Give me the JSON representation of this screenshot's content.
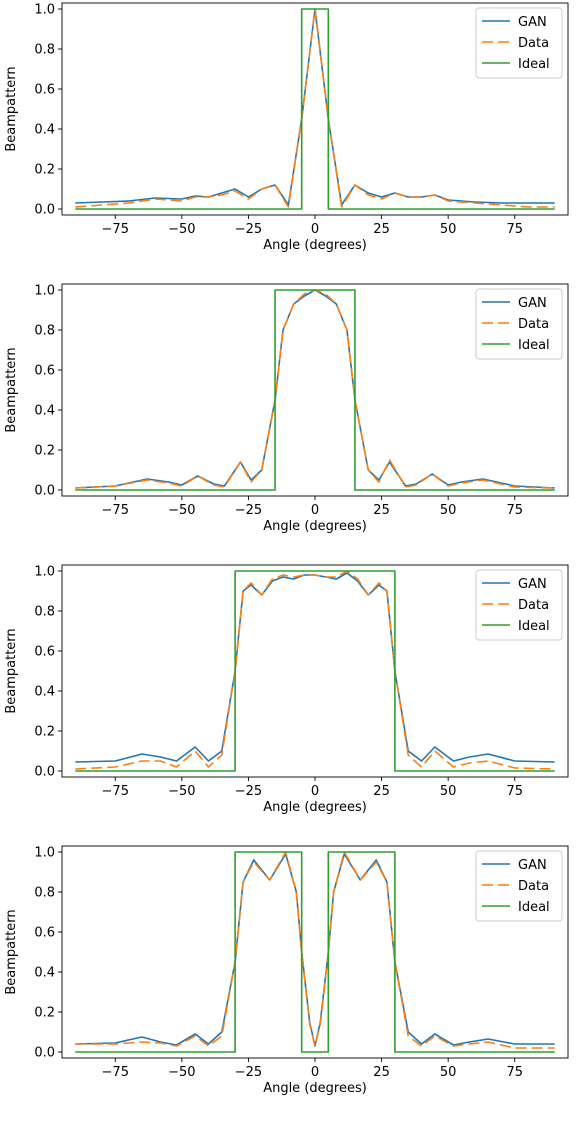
{
  "chart_data": [
    {
      "type": "line",
      "xlabel": "Angle (degrees)",
      "ylabel": "Beampattern",
      "xlim": [
        -95,
        95
      ],
      "ylim": [
        -0.03,
        1.03
      ],
      "xticks": [
        -75,
        -50,
        -25,
        0,
        25,
        50,
        75
      ],
      "xtick_labels": [
        "−75",
        "−50",
        "−25",
        "0",
        "25",
        "50",
        "75"
      ],
      "yticks": [
        0.0,
        0.2,
        0.4,
        0.6,
        0.8,
        1.0
      ],
      "ytick_labels": [
        "0.0",
        "0.2",
        "0.4",
        "0.6",
        "0.8",
        "1.0"
      ],
      "legend_position": "top-right",
      "series": [
        {
          "name": "GAN",
          "color": "#1f77b4",
          "x": [
            -90,
            -80,
            -70,
            -60,
            -50,
            -45,
            -40,
            -35,
            -30,
            -25,
            -20,
            -15,
            -10,
            -5,
            0,
            5,
            10,
            15,
            20,
            25,
            30,
            35,
            40,
            45,
            50,
            60,
            70,
            80,
            90
          ],
          "y": [
            0.03,
            0.035,
            0.04,
            0.055,
            0.05,
            0.065,
            0.06,
            0.08,
            0.1,
            0.06,
            0.1,
            0.12,
            0.02,
            0.45,
            1.0,
            0.45,
            0.02,
            0.12,
            0.08,
            0.06,
            0.08,
            0.06,
            0.06,
            0.07,
            0.045,
            0.035,
            0.03,
            0.03,
            0.03
          ]
        },
        {
          "name": "Data",
          "color": "#ff7f0e",
          "x": [
            -90,
            -80,
            -70,
            -60,
            -50,
            -45,
            -40,
            -35,
            -30,
            -25,
            -20,
            -15,
            -10,
            -5,
            0,
            5,
            10,
            15,
            20,
            25,
            30,
            35,
            40,
            45,
            50,
            60,
            70,
            80,
            90
          ],
          "y": [
            0.01,
            0.02,
            0.03,
            0.05,
            0.04,
            0.06,
            0.06,
            0.07,
            0.09,
            0.05,
            0.1,
            0.12,
            0.01,
            0.45,
            1.0,
            0.45,
            0.01,
            0.12,
            0.07,
            0.05,
            0.08,
            0.06,
            0.06,
            0.07,
            0.04,
            0.03,
            0.02,
            0.01,
            0.01
          ]
        },
        {
          "name": "Ideal",
          "color": "#2ca02c",
          "x": [
            -90,
            -5,
            -5,
            5,
            5,
            90
          ],
          "y": [
            0,
            0,
            1,
            1,
            0,
            0
          ]
        }
      ]
    },
    {
      "type": "line",
      "xlabel": "Angle (degrees)",
      "ylabel": "Beampattern",
      "xlim": [
        -95,
        95
      ],
      "ylim": [
        -0.03,
        1.03
      ],
      "xticks": [
        -75,
        -50,
        -25,
        0,
        25,
        50,
        75
      ],
      "xtick_labels": [
        "−75",
        "−50",
        "−25",
        "0",
        "25",
        "50",
        "75"
      ],
      "yticks": [
        0.0,
        0.2,
        0.4,
        0.6,
        0.8,
        1.0
      ],
      "ytick_labels": [
        "0.0",
        "0.2",
        "0.4",
        "0.6",
        "0.8",
        "1.0"
      ],
      "legend_position": "top-right",
      "series": [
        {
          "name": "GAN",
          "color": "#1f77b4",
          "x": [
            -90,
            -75,
            -63,
            -55,
            -50,
            -44,
            -38,
            -34,
            -28,
            -24,
            -20,
            -15,
            -12,
            -8,
            -4,
            0,
            4,
            8,
            12,
            15,
            20,
            24,
            28,
            34,
            38,
            44,
            50,
            55,
            63,
            75,
            90
          ],
          "y": [
            0.01,
            0.02,
            0.055,
            0.04,
            0.025,
            0.07,
            0.03,
            0.02,
            0.14,
            0.05,
            0.1,
            0.45,
            0.8,
            0.93,
            0.97,
            1.0,
            0.97,
            0.93,
            0.8,
            0.45,
            0.1,
            0.05,
            0.14,
            0.02,
            0.03,
            0.08,
            0.025,
            0.04,
            0.055,
            0.02,
            0.01
          ]
        },
        {
          "name": "Data",
          "color": "#ff7f0e",
          "x": [
            -90,
            -75,
            -63,
            -55,
            -50,
            -44,
            -38,
            -34,
            -28,
            -24,
            -20,
            -15,
            -12,
            -8,
            -4,
            0,
            4,
            8,
            12,
            15,
            20,
            24,
            28,
            34,
            38,
            44,
            50,
            55,
            63,
            75,
            90
          ],
          "y": [
            0.01,
            0.02,
            0.05,
            0.035,
            0.02,
            0.07,
            0.025,
            0.015,
            0.14,
            0.04,
            0.1,
            0.45,
            0.8,
            0.93,
            0.98,
            1.0,
            0.98,
            0.93,
            0.8,
            0.45,
            0.1,
            0.04,
            0.15,
            0.015,
            0.025,
            0.08,
            0.02,
            0.035,
            0.05,
            0.015,
            0.01
          ]
        },
        {
          "name": "Ideal",
          "color": "#2ca02c",
          "x": [
            -90,
            -15,
            -15,
            15,
            15,
            90
          ],
          "y": [
            0,
            0,
            1,
            1,
            0,
            0
          ]
        }
      ]
    },
    {
      "type": "line",
      "xlabel": "Angle (degrees)",
      "ylabel": "Beampattern",
      "xlim": [
        -95,
        95
      ],
      "ylim": [
        -0.03,
        1.03
      ],
      "xticks": [
        -75,
        -50,
        -25,
        0,
        25,
        50,
        75
      ],
      "xtick_labels": [
        "−75",
        "−50",
        "−25",
        "0",
        "25",
        "50",
        "75"
      ],
      "yticks": [
        0.0,
        0.2,
        0.4,
        0.6,
        0.8,
        1.0
      ],
      "ytick_labels": [
        "0.0",
        "0.2",
        "0.4",
        "0.6",
        "0.8",
        "1.0"
      ],
      "legend_position": "top-right",
      "series": [
        {
          "name": "GAN",
          "color": "#1f77b4",
          "x": [
            -90,
            -75,
            -65,
            -58,
            -52,
            -45,
            -40,
            -35,
            -30,
            -27,
            -24,
            -20,
            -16,
            -12,
            -8,
            -4,
            0,
            4,
            8,
            12,
            16,
            20,
            24,
            27,
            30,
            35,
            40,
            45,
            52,
            58,
            65,
            75,
            90
          ],
          "y": [
            0.045,
            0.05,
            0.085,
            0.07,
            0.05,
            0.12,
            0.05,
            0.1,
            0.5,
            0.9,
            0.93,
            0.88,
            0.95,
            0.97,
            0.96,
            0.98,
            0.98,
            0.97,
            0.96,
            0.99,
            0.95,
            0.88,
            0.93,
            0.9,
            0.5,
            0.1,
            0.05,
            0.12,
            0.05,
            0.07,
            0.085,
            0.05,
            0.045
          ]
        },
        {
          "name": "Data",
          "color": "#ff7f0e",
          "x": [
            -90,
            -75,
            -65,
            -58,
            -52,
            -45,
            -40,
            -35,
            -30,
            -27,
            -24,
            -20,
            -16,
            -12,
            -8,
            -4,
            0,
            4,
            8,
            12,
            16,
            20,
            24,
            27,
            30,
            35,
            40,
            45,
            52,
            58,
            65,
            75,
            90
          ],
          "y": [
            0.01,
            0.02,
            0.05,
            0.05,
            0.02,
            0.1,
            0.02,
            0.08,
            0.5,
            0.9,
            0.94,
            0.88,
            0.96,
            0.98,
            0.97,
            0.98,
            0.98,
            0.97,
            0.97,
            1.0,
            0.96,
            0.88,
            0.94,
            0.9,
            0.5,
            0.08,
            0.02,
            0.1,
            0.02,
            0.04,
            0.05,
            0.015,
            0.01
          ]
        },
        {
          "name": "Ideal",
          "color": "#2ca02c",
          "x": [
            -90,
            -30,
            -30,
            30,
            30,
            90
          ],
          "y": [
            0,
            0,
            1,
            1,
            0,
            0
          ]
        }
      ]
    },
    {
      "type": "line",
      "xlabel": "Angle (degrees)",
      "ylabel": "Beampattern",
      "xlim": [
        -95,
        95
      ],
      "ylim": [
        -0.03,
        1.03
      ],
      "xticks": [
        -75,
        -50,
        -25,
        0,
        25,
        50,
        75
      ],
      "xtick_labels": [
        "−75",
        "−50",
        "−25",
        "0",
        "25",
        "50",
        "75"
      ],
      "yticks": [
        0.0,
        0.2,
        0.4,
        0.6,
        0.8,
        1.0
      ],
      "ytick_labels": [
        "0.0",
        "0.2",
        "0.4",
        "0.6",
        "0.8",
        "1.0"
      ],
      "legend_position": "top-right",
      "series": [
        {
          "name": "GAN",
          "color": "#1f77b4",
          "x": [
            -90,
            -75,
            -65,
            -58,
            -52,
            -45,
            -40,
            -35,
            -30,
            -27,
            -23,
            -17,
            -11,
            -7,
            -5,
            -2,
            0,
            2,
            5,
            7,
            11,
            17,
            23,
            27,
            30,
            35,
            40,
            45,
            52,
            58,
            65,
            75,
            90
          ],
          "y": [
            0.04,
            0.045,
            0.075,
            0.05,
            0.035,
            0.09,
            0.04,
            0.1,
            0.45,
            0.85,
            0.96,
            0.86,
            0.99,
            0.8,
            0.5,
            0.15,
            0.03,
            0.15,
            0.5,
            0.8,
            0.99,
            0.86,
            0.96,
            0.85,
            0.45,
            0.1,
            0.04,
            0.09,
            0.035,
            0.05,
            0.065,
            0.04,
            0.04
          ]
        },
        {
          "name": "Data",
          "color": "#ff7f0e",
          "x": [
            -90,
            -75,
            -65,
            -58,
            -52,
            -45,
            -40,
            -35,
            -30,
            -27,
            -23,
            -17,
            -11,
            -7,
            -5,
            -2,
            0,
            2,
            5,
            7,
            11,
            17,
            23,
            27,
            30,
            35,
            40,
            45,
            52,
            58,
            65,
            75,
            90
          ],
          "y": [
            0.04,
            0.04,
            0.05,
            0.045,
            0.03,
            0.08,
            0.03,
            0.08,
            0.45,
            0.85,
            0.95,
            0.86,
            1.0,
            0.8,
            0.5,
            0.14,
            0.03,
            0.14,
            0.5,
            0.8,
            1.0,
            0.86,
            0.95,
            0.85,
            0.45,
            0.08,
            0.03,
            0.08,
            0.03,
            0.04,
            0.05,
            0.02,
            0.02
          ]
        },
        {
          "name": "Ideal",
          "color": "#2ca02c",
          "x": [
            -90,
            -30,
            -30,
            -5,
            -5,
            5,
            5,
            30,
            30,
            90
          ],
          "y": [
            0,
            0,
            1,
            1,
            0,
            0,
            1,
            1,
            0,
            0
          ]
        }
      ]
    }
  ]
}
